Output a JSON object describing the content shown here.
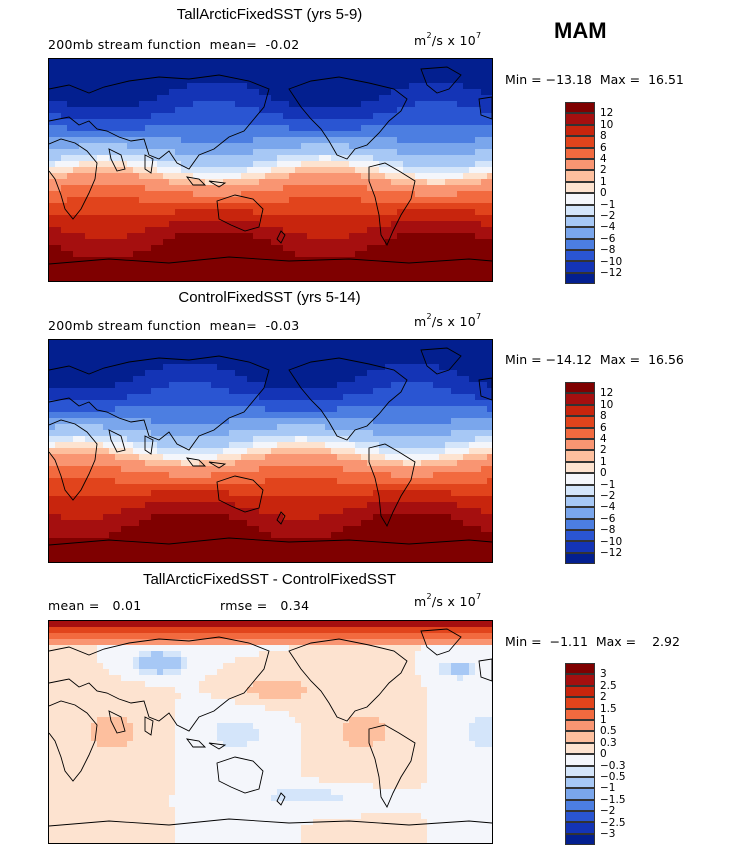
{
  "season": "MAM",
  "units_prefix": "m",
  "units_exp1": "2",
  "units_mid": "/s x 10",
  "units_exp2": "7",
  "panels": [
    {
      "title": "TallArcticFixedSST (yrs 5-9)",
      "stat_left": "200mb stream function",
      "stat_mean_label": "mean=",
      "stat_mean_value": "-0.02",
      "min_label": "Min =",
      "min_value": "−13.18",
      "max_label": "Max =",
      "max_value": "16.51",
      "colorbar_labels": [
        "12",
        "10",
        "8",
        "6",
        "4",
        "2",
        "1",
        "0",
        "−1",
        "−2",
        "−4",
        "−6",
        "−8",
        "−10",
        "−12"
      ],
      "colors": [
        "#7f0000",
        "#a50f0f",
        "#c8250d",
        "#e1441c",
        "#f26a3f",
        "#f99572",
        "#fdbf9e",
        "#fde3d0",
        "#f4f6fb",
        "#d4e5fa",
        "#a7c8f5",
        "#7aa6ec",
        "#4c7ee1",
        "#2a55d2",
        "#1434b6",
        "#031f8f"
      ],
      "field_type": "full"
    },
    {
      "title": "ControlFixedSST (yrs 5-14)",
      "stat_left": "200mb stream function",
      "stat_mean_label": "mean=",
      "stat_mean_value": "-0.03",
      "min_label": "Min =",
      "min_value": "−14.12",
      "max_label": "Max =",
      "max_value": "16.56",
      "colorbar_labels": [
        "12",
        "10",
        "8",
        "6",
        "4",
        "2",
        "1",
        "0",
        "−1",
        "−2",
        "−4",
        "−6",
        "−8",
        "−10",
        "−12"
      ],
      "colors": [
        "#7f0000",
        "#a50f0f",
        "#c8250d",
        "#e1441c",
        "#f26a3f",
        "#f99572",
        "#fdbf9e",
        "#fde3d0",
        "#f4f6fb",
        "#d4e5fa",
        "#a7c8f5",
        "#7aa6ec",
        "#4c7ee1",
        "#2a55d2",
        "#1434b6",
        "#031f8f"
      ],
      "field_type": "full"
    },
    {
      "title": "TallArcticFixedSST - ControlFixedSST",
      "diff_mean_label": "mean =",
      "diff_mean_value": "0.01",
      "diff_rmse_label": "rmse =",
      "diff_rmse_value": "0.34",
      "min_label": "Min =",
      "min_value": "−1.11",
      "max_label": "Max =",
      "max_value": "2.92",
      "colorbar_labels": [
        "3",
        "2.5",
        "2",
        "1.5",
        "1",
        "0.5",
        "0.3",
        "0",
        "−0.3",
        "−0.5",
        "−1",
        "−1.5",
        "−2",
        "−2.5",
        "−3"
      ],
      "colors": [
        "#7f0000",
        "#a50f0f",
        "#c8250d",
        "#e1441c",
        "#f26a3f",
        "#f99572",
        "#fdbf9e",
        "#fde3d0",
        "#f4f6fb",
        "#d4e5fa",
        "#a7c8f5",
        "#7aa6ec",
        "#4c7ee1",
        "#2a55d2",
        "#1434b6",
        "#031f8f"
      ],
      "field_type": "diff"
    }
  ],
  "chart_data": [
    {
      "type": "heatmap",
      "title": "TallArcticFixedSST (yrs 5-9)",
      "variable": "200mb stream function",
      "mean": -0.02,
      "min": -13.18,
      "max": 16.51,
      "levels": [
        -12,
        -10,
        -8,
        -6,
        -4,
        -2,
        -1,
        0,
        1,
        2,
        4,
        6,
        8,
        10,
        12
      ]
    },
    {
      "type": "heatmap",
      "title": "ControlFixedSST (yrs 5-14)",
      "variable": "200mb stream function",
      "mean": -0.03,
      "min": -14.12,
      "max": 16.56,
      "levels": [
        -12,
        -10,
        -8,
        -6,
        -4,
        -2,
        -1,
        0,
        1,
        2,
        4,
        6,
        8,
        10,
        12
      ]
    },
    {
      "type": "heatmap",
      "title": "TallArcticFixedSST - ControlFixedSST",
      "mean": 0.01,
      "rmse": 0.34,
      "min": -1.11,
      "max": 2.92,
      "levels": [
        -3,
        -2.5,
        -2,
        -1.5,
        -1,
        -0.5,
        -0.3,
        0,
        0.3,
        0.5,
        1,
        1.5,
        2,
        2.5,
        3
      ]
    }
  ]
}
